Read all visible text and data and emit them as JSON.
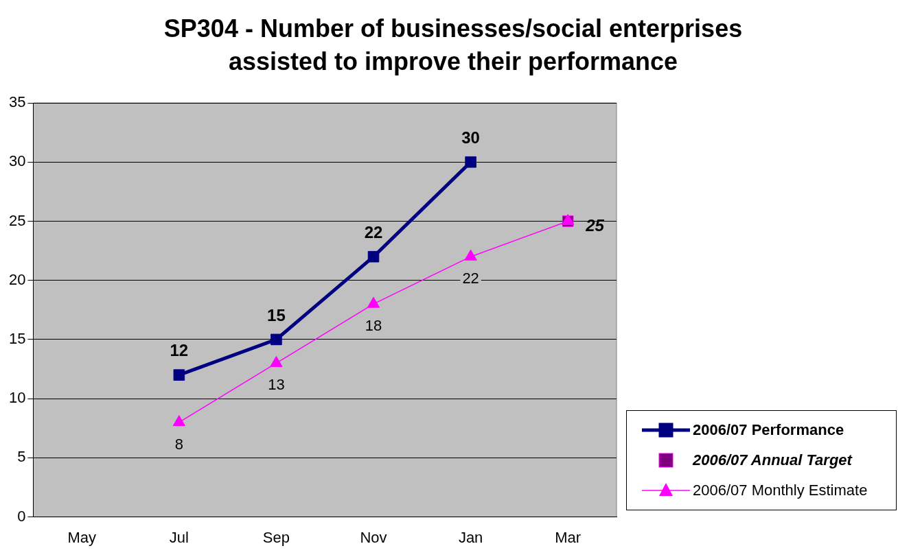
{
  "chart_data": {
    "type": "line",
    "title": "SP304 - Number of businesses/social enterprises assisted to improve their performance",
    "categories": [
      "May",
      "Jul",
      "Sep",
      "Nov",
      "Jan",
      "Mar"
    ],
    "series": [
      {
        "name": "2006/07 Performance",
        "color": "#000080",
        "marker": "square",
        "values": [
          null,
          12,
          15,
          22,
          30,
          null
        ],
        "value_labels": [
          null,
          "12",
          "15",
          "22",
          "30",
          null
        ]
      },
      {
        "name": "2006/07 Annual Target",
        "type": "scatter",
        "color": "#800080",
        "marker": "square",
        "values": [
          null,
          null,
          null,
          null,
          null,
          25
        ],
        "value_labels": [
          null,
          null,
          null,
          null,
          null,
          "25"
        ]
      },
      {
        "name": "2006/07 Monthly Estimate",
        "color": "#ff00ff",
        "marker": "triangle",
        "values": [
          null,
          8,
          13,
          18,
          22,
          25
        ],
        "value_labels": [
          null,
          "8",
          "13",
          "18",
          "22",
          null
        ]
      }
    ],
    "ylim": [
      0,
      35
    ],
    "yticks": [
      0,
      5,
      10,
      15,
      20,
      25,
      30,
      35
    ],
    "grid": "y",
    "legend": "bottom right"
  }
}
